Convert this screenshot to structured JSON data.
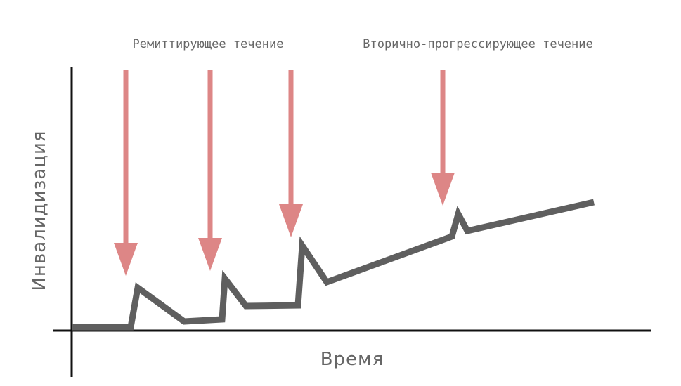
{
  "annotations": {
    "relapsing": "Ремиттирующее течение",
    "progressive": "Вторично-прогрессирующее течение"
  },
  "axes": {
    "y_label": "Инвалидизация",
    "x_label": "Время"
  }
}
